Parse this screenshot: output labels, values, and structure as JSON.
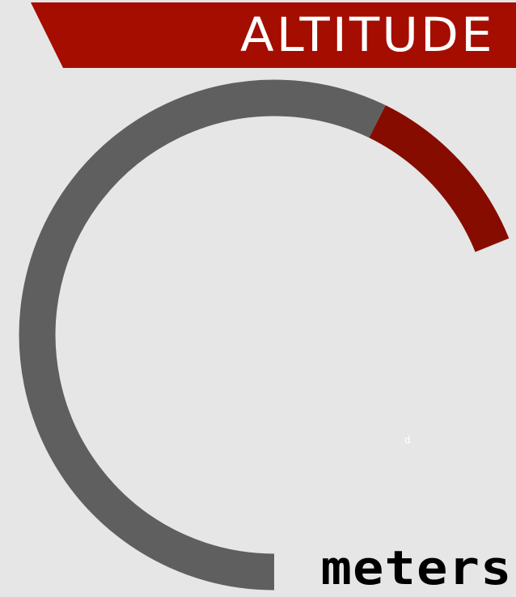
{
  "header": {
    "title": "ALTITUDE",
    "banner_color": "#a50d00"
  },
  "gauge": {
    "track_color": "#5f5f5f",
    "zone_color": "#860c00",
    "zone_label": "d"
  },
  "unit": {
    "label": "meters"
  }
}
